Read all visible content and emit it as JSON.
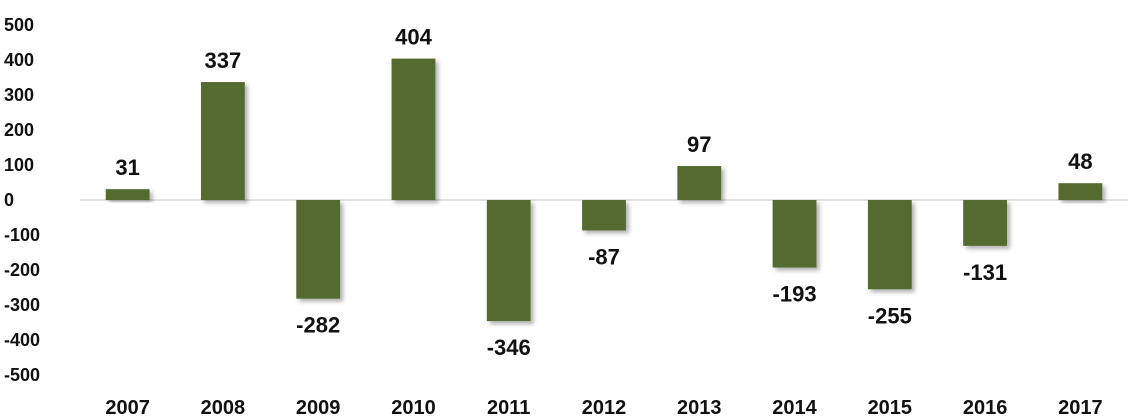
{
  "chart_data": {
    "type": "bar",
    "categories": [
      "2007",
      "2008",
      "2009",
      "2010",
      "2011",
      "2012",
      "2013",
      "2014",
      "2015",
      "2016",
      "2017"
    ],
    "values": [
      31,
      337,
      -282,
      404,
      -346,
      -87,
      97,
      -193,
      -255,
      -131,
      48
    ],
    "ylim": [
      -500,
      500
    ],
    "yticks": [
      500,
      400,
      300,
      200,
      100,
      0,
      -100,
      -200,
      -300,
      -400,
      -500
    ],
    "grid": false,
    "legend": "none",
    "data_labels": true,
    "colors": {
      "bar": "#556b2f",
      "axis": "#d9d9d9",
      "text": "#111111"
    }
  }
}
